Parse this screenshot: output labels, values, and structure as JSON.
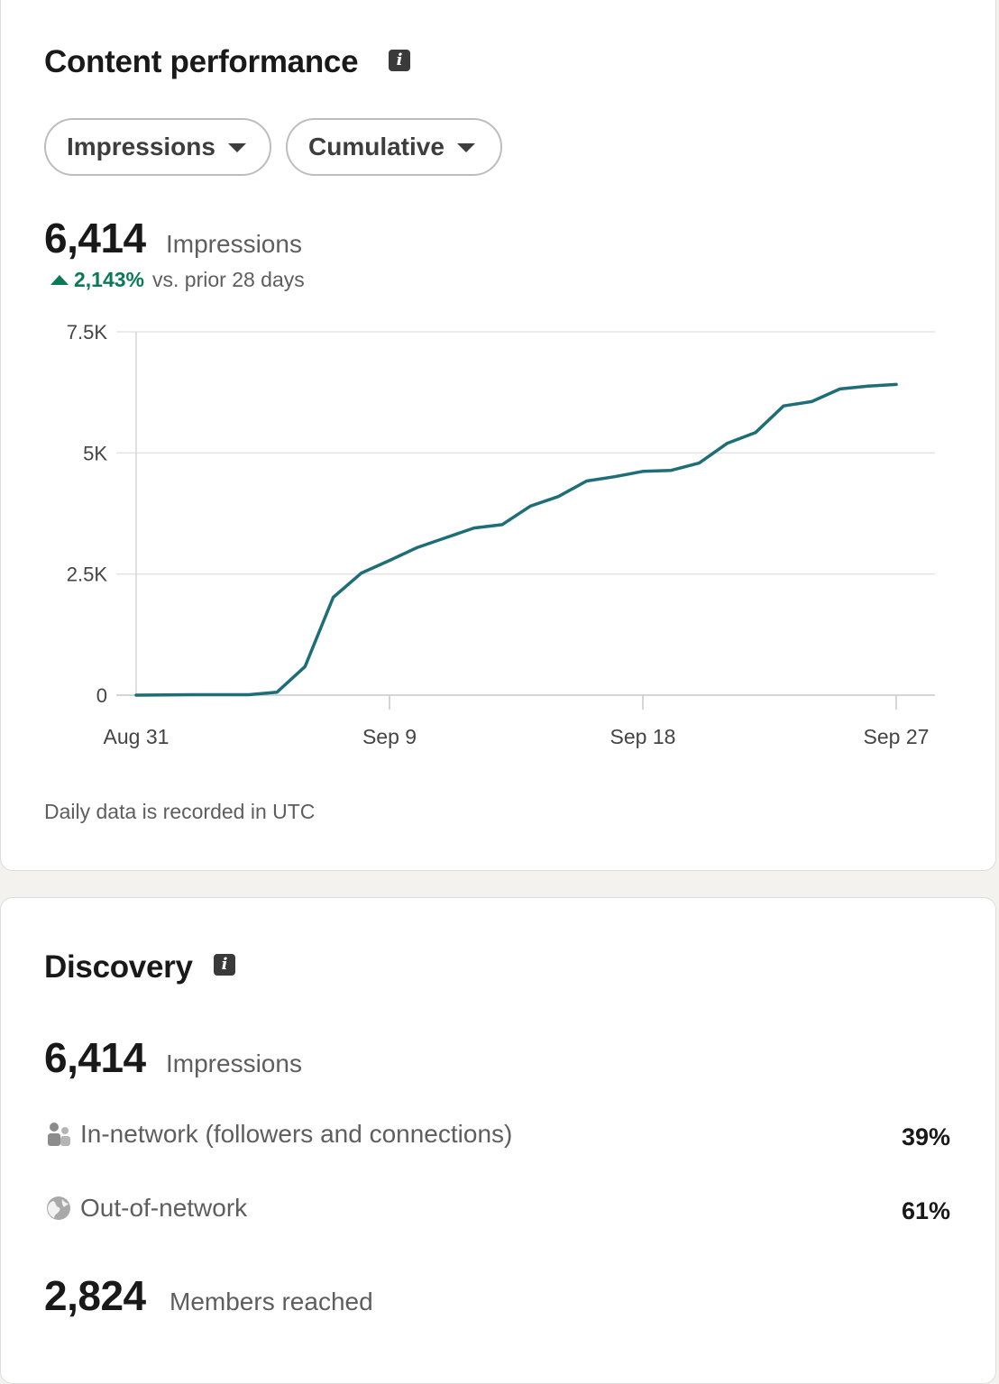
{
  "content_performance": {
    "title": "Content performance",
    "info_icon": "info-icon",
    "metric_dropdown": "Impressions",
    "mode_dropdown": "Cumulative",
    "total_value": "6,414",
    "total_label": "Impressions",
    "trend_pct": "2,143%",
    "trend_text": "vs. prior 28 days",
    "trend_color": "#0a7a56",
    "footnote": "Daily data is recorded in UTC"
  },
  "chart_data": {
    "type": "line",
    "x_start": "Aug 31",
    "x_end": "Sep 27",
    "x_tick_labels": [
      "Aug 31",
      "Sep 9",
      "Sep 18",
      "Sep 27"
    ],
    "y_tick_labels": [
      "0",
      "2.5K",
      "5K",
      "7.5K"
    ],
    "ylim": [
      0,
      7500
    ],
    "grid": true,
    "line_color": "#1e6e78",
    "series": [
      {
        "x": [
          "Aug 31",
          "Sep 1",
          "Sep 2",
          "Sep 3",
          "Sep 4",
          "Sep 5",
          "Sep 6",
          "Sep 7",
          "Sep 8",
          "Sep 9",
          "Sep 10",
          "Sep 11",
          "Sep 12",
          "Sep 13",
          "Sep 14",
          "Sep 15",
          "Sep 16",
          "Sep 17",
          "Sep 18",
          "Sep 19",
          "Sep 20",
          "Sep 21",
          "Sep 22",
          "Sep 23",
          "Sep 24",
          "Sep 25",
          "Sep 26",
          "Sep 27"
        ],
        "values": [
          0,
          5,
          10,
          10,
          10,
          60,
          590,
          2020,
          2520,
          2780,
          3050,
          3250,
          3450,
          3520,
          3900,
          4100,
          4420,
          4510,
          4620,
          4640,
          4790,
          5200,
          5420,
          5970,
          6060,
          6320,
          6380,
          6414
        ]
      }
    ]
  },
  "discovery": {
    "title": "Discovery",
    "info_icon": "info-icon",
    "impressions_value": "6,414",
    "impressions_label": "Impressions",
    "in_network_label": "In-network (followers and connections)",
    "in_network_pct": "39%",
    "in_network_icon": "people-icon",
    "out_network_label": "Out-of-network",
    "out_network_pct": "61%",
    "out_network_icon": "globe-icon",
    "members_value": "2,824",
    "members_label": "Members reached"
  }
}
